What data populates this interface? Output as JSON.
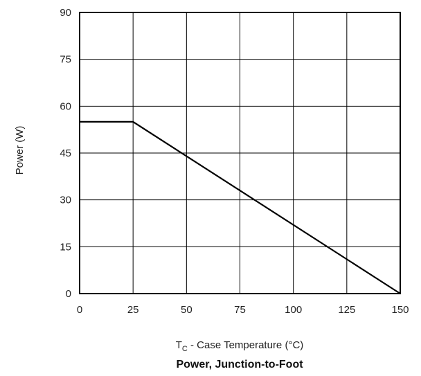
{
  "chart_data": {
    "type": "line",
    "title": "Power, Junction-to-Foot",
    "xlabel": {
      "main": "T",
      "subscript": "C",
      "rest": " - Case Temperature (°C)"
    },
    "ylabel": "Power (W)",
    "xlim": [
      0,
      150
    ],
    "ylim": [
      0,
      90
    ],
    "x_ticks": [
      0,
      25,
      50,
      75,
      100,
      125,
      150
    ],
    "y_ticks": [
      0,
      15,
      30,
      45,
      60,
      75,
      90
    ],
    "grid": true,
    "legend": "none",
    "series": [
      {
        "x": [
          0,
          25,
          150
        ],
        "y": [
          55,
          55,
          0
        ],
        "color": "#000000"
      }
    ]
  }
}
